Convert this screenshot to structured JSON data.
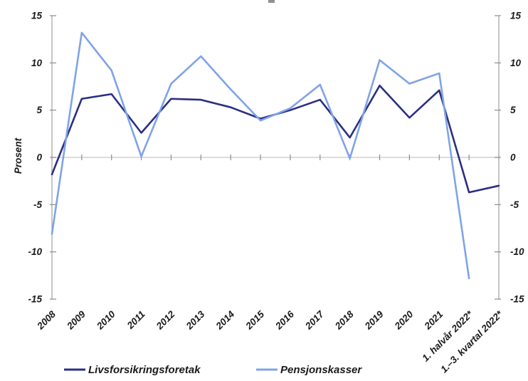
{
  "chart_data": {
    "type": "line",
    "title": "",
    "ylabel": "Prosent",
    "ylim": [
      -15,
      15
    ],
    "yticks": [
      15,
      10,
      5,
      0,
      -5,
      -10,
      -15
    ],
    "grid": "zero-line-only",
    "dual_y_axis": true,
    "legend_position": "bottom",
    "categories": [
      "2008",
      "2009",
      "2010",
      "2011",
      "2012",
      "2013",
      "2014",
      "2015",
      "2016",
      "2017",
      "2018",
      "2019",
      "2020",
      "2021",
      "1. halvår 2022*",
      "1.–3. kvartal 2022*"
    ],
    "series": [
      {
        "name": "Livsforsikringsforetak",
        "color": "#2B2F82",
        "values": [
          -1.8,
          6.2,
          6.7,
          2.6,
          6.2,
          6.1,
          5.3,
          4.1,
          5.0,
          6.1,
          2.1,
          7.6,
          4.2,
          7.1,
          -3.7,
          -3.0
        ]
      },
      {
        "name": "Pensjonskasser",
        "color": "#7FA3E8",
        "values": [
          -8.1,
          13.2,
          9.2,
          0.1,
          7.8,
          10.7,
          7.2,
          3.9,
          5.2,
          7.7,
          -0.1,
          10.3,
          7.8,
          8.9,
          -12.8,
          null
        ]
      }
    ]
  },
  "colors": {
    "axis": "#A8A8A8",
    "tick": "#8C8C8C",
    "zero_line": "#C8C8C8",
    "text": "#1a1a1a"
  }
}
